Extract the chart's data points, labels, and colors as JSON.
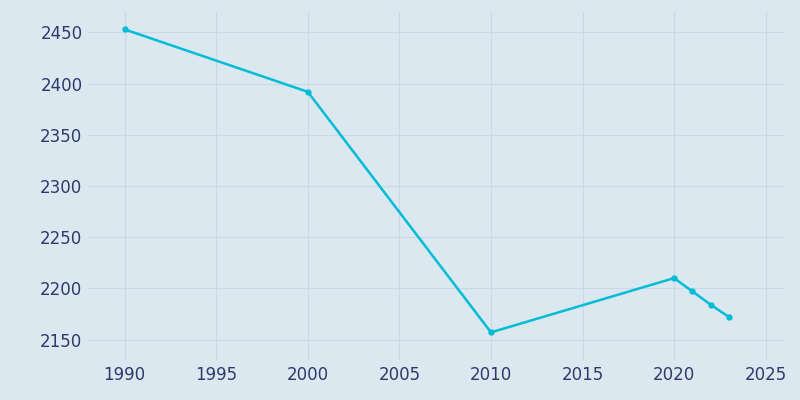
{
  "years": [
    1990,
    2000,
    2010,
    2020,
    2021,
    2022,
    2023
  ],
  "population": [
    2453,
    2392,
    2157,
    2210,
    2197,
    2184,
    2172
  ],
  "line_color": "#00BCD4",
  "marker": "o",
  "marker_size": 3.5,
  "background_color": "#dce8f0",
  "grid_color": "#c8d8e8",
  "xlim": [
    1988,
    2026
  ],
  "ylim": [
    2130,
    2470
  ],
  "xticks": [
    1990,
    1995,
    2000,
    2005,
    2010,
    2015,
    2020,
    2025
  ],
  "yticks": [
    2150,
    2200,
    2250,
    2300,
    2350,
    2400,
    2450
  ],
  "tick_color": "#2d3a6b",
  "tick_fontsize": 12
}
